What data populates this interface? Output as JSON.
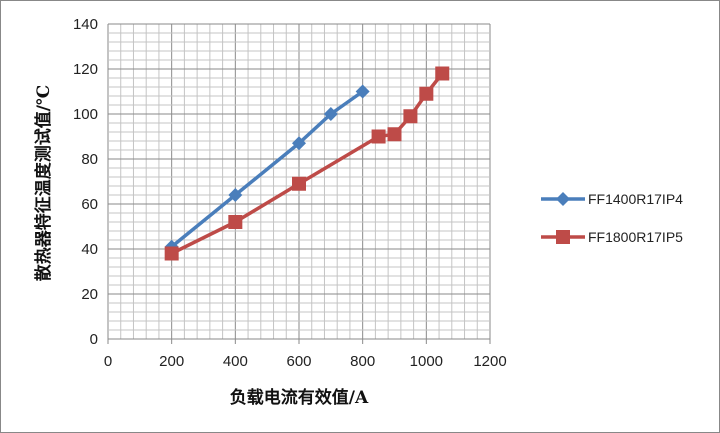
{
  "chart_data": {
    "type": "line",
    "title": "",
    "xlabel": "负载电流有效值/A",
    "ylabel": "散热器特征温度测试值/℃",
    "xlim": [
      0,
      1200
    ],
    "ylim": [
      0,
      140
    ],
    "xticks": [
      0,
      200,
      400,
      600,
      800,
      1000,
      1200
    ],
    "yticks": [
      0,
      20,
      40,
      60,
      80,
      100,
      120,
      140
    ],
    "grid": true,
    "legend": "right",
    "series": [
      {
        "name": "FF1400R17IP4",
        "color": "#4a7ebb",
        "marker": "diamond",
        "x": [
          200,
          400,
          600,
          700,
          800
        ],
        "y": [
          41,
          64,
          87,
          100,
          110
        ]
      },
      {
        "name": "FF1800R17IP5",
        "color": "#be4b48",
        "marker": "square",
        "x": [
          200,
          400,
          600,
          850,
          900,
          950,
          1000,
          1050
        ],
        "y": [
          38,
          52,
          69,
          90,
          91,
          99,
          109,
          118
        ]
      }
    ]
  }
}
